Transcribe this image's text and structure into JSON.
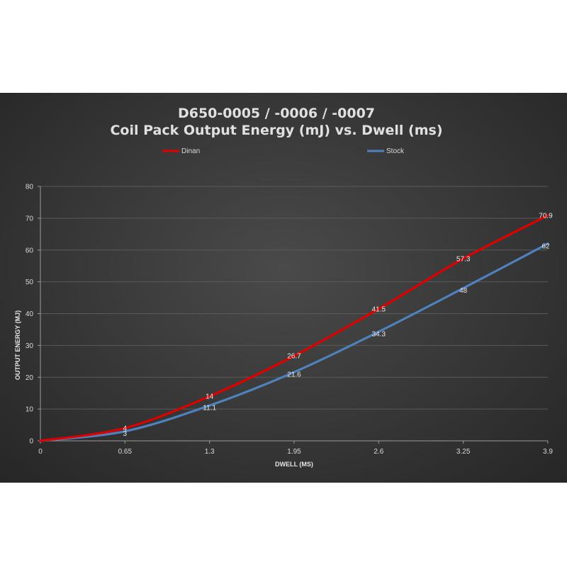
{
  "chart_data": {
    "type": "line",
    "title_line1": "D650-0005 / -0006 / -0007",
    "title_line2": "Coil Pack Output Energy (mJ) vs. Dwell (ms)",
    "xlabel": "DWELL (MS)",
    "ylabel": "OUTPUT ENERGY (MJ)",
    "x": [
      0,
      0.65,
      1.3,
      1.95,
      2.6,
      3.25,
      3.9
    ],
    "x_tick_labels": [
      "0",
      "0.65",
      "1.3",
      "1.95",
      "2.6",
      "3.25",
      "3.9"
    ],
    "y_ticks": [
      0,
      10,
      20,
      30,
      40,
      50,
      60,
      70,
      80
    ],
    "xlim": [
      0,
      3.9
    ],
    "ylim": [
      0,
      80
    ],
    "grid": true,
    "legend_position": "top",
    "series": [
      {
        "name": "Dinan",
        "color": "#e00000",
        "values": [
          0,
          4,
          14,
          26.7,
          41.5,
          57.3,
          70.9
        ],
        "labels": [
          "",
          "4",
          "14",
          "26.7",
          "41.5",
          "57.3",
          "70.9"
        ]
      },
      {
        "name": "Stock",
        "color": "#4f81bd",
        "values": [
          0,
          3,
          11.1,
          21.6,
          34.3,
          48,
          62
        ],
        "labels": [
          "",
          "3",
          "11.1",
          "21.6",
          "34.3",
          "48",
          "62"
        ]
      }
    ]
  }
}
